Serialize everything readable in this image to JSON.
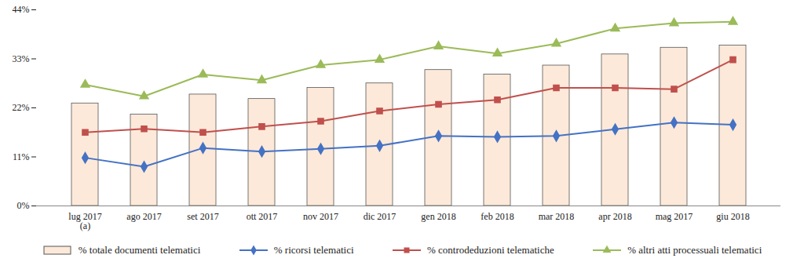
{
  "chart_data": {
    "type": "bar",
    "categories": [
      "lug 2017\n(a)",
      "ago 2017",
      "set 2017",
      "ott 2017",
      "nov 2017",
      "dic 2017",
      "gen 2018",
      "feb 2018",
      "mar 2018",
      "apr 2018",
      "mag 2017",
      "giu 2018"
    ],
    "ylim": [
      0,
      44
    ],
    "yticks": [
      {
        "value": 0,
        "label": "0%"
      },
      {
        "value": 11,
        "label": "11%"
      },
      {
        "value": 22,
        "label": "22%"
      },
      {
        "value": 33,
        "label": "33%"
      },
      {
        "value": 44,
        "label": "44%"
      }
    ],
    "grid": false,
    "legend": "bottom",
    "series": [
      {
        "name": "% totale documenti telematici",
        "type": "bar",
        "color": "#fde9d9",
        "values": [
          23,
          20.5,
          25,
          24,
          26.5,
          27.5,
          30.5,
          29.5,
          31.5,
          34,
          35.5,
          36
        ]
      },
      {
        "name": "% ricorsi telematici",
        "type": "line",
        "marker": "diamond",
        "color": "#4472c4",
        "values": [
          10.8,
          8.8,
          13,
          12.2,
          12.8,
          13.5,
          15.7,
          15.5,
          15.7,
          17.2,
          18.7,
          18.2
        ]
      },
      {
        "name": "% controdeduzioni telematiche",
        "type": "line",
        "marker": "square",
        "color": "#c0504d",
        "values": [
          16.5,
          17.3,
          16.5,
          17.8,
          19,
          21.3,
          22.8,
          23.8,
          26.5,
          26.5,
          26.2,
          32.8
        ]
      },
      {
        "name": "% altri atti processuali telematici",
        "type": "line",
        "marker": "triangle",
        "color": "#9bbb59",
        "values": [
          27.2,
          24.6,
          29.5,
          28.2,
          31.6,
          32.8,
          35.8,
          34.2,
          36.4,
          39.8,
          41,
          41.3
        ]
      }
    ]
  }
}
